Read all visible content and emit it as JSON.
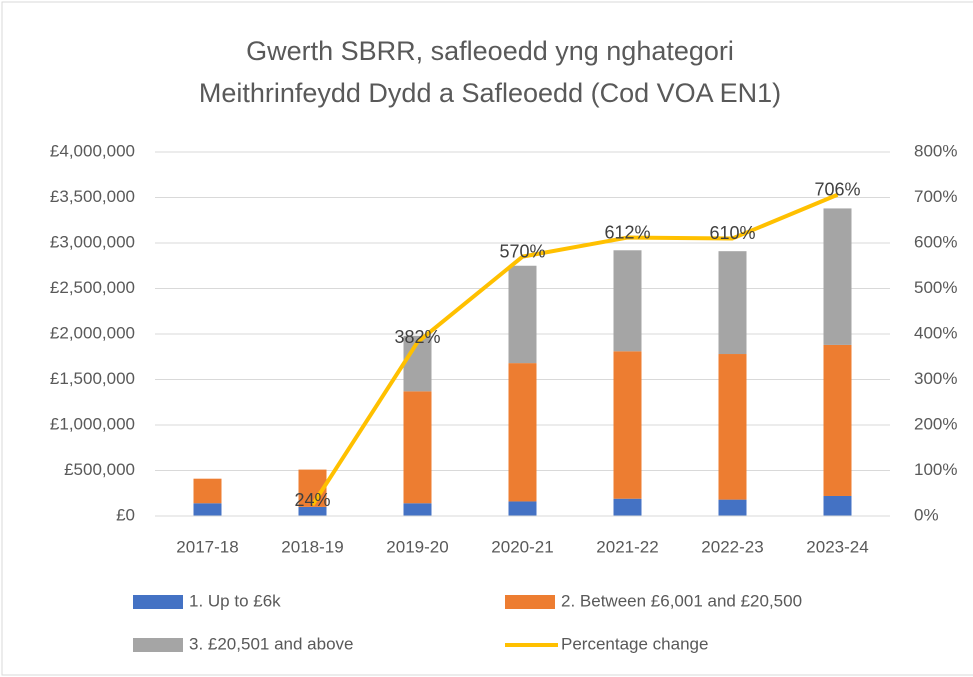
{
  "chart_data": {
    "type": "bar",
    "stacked": true,
    "title": "Gwerth SBRR, safleoedd yng nghategori Meithrinfeydd Dydd a Safleoedd (Cod VOA EN1)",
    "categories": [
      "2017-18",
      "2018-19",
      "2019-20",
      "2020-21",
      "2021-22",
      "2022-23",
      "2023-24"
    ],
    "series": [
      {
        "name": "1. Up to £6k",
        "color": "#4472c4",
        "type": "bar",
        "values": [
          140000,
          100000,
          140000,
          160000,
          190000,
          180000,
          220000
        ]
      },
      {
        "name": "2. Between £6,001 and £20,500",
        "color": "#ed7d31",
        "type": "bar",
        "values": [
          270000,
          410000,
          1230000,
          1520000,
          1620000,
          1600000,
          1660000
        ]
      },
      {
        "name": "3. £20,501 and above",
        "color": "#a5a5a5",
        "type": "bar",
        "values": [
          0,
          0,
          610000,
          1070000,
          1110000,
          1130000,
          1500000
        ]
      },
      {
        "name": "Percentage change",
        "color": "#ffc000",
        "type": "line",
        "axis": "y2",
        "values": [
          null,
          24,
          382,
          570,
          612,
          610,
          706
        ],
        "value_labels": [
          null,
          "24%",
          "382%",
          "570%",
          "612%",
          "610%",
          "706%"
        ]
      }
    ],
    "ylim": [
      0,
      4000000
    ],
    "yticks": [
      {
        "value": 0,
        "label": "£0"
      },
      {
        "value": 500000,
        "label": "£500,000"
      },
      {
        "value": 1000000,
        "label": "£1,000,000"
      },
      {
        "value": 1500000,
        "label": "£1,500,000"
      },
      {
        "value": 2000000,
        "label": "£2,000,000"
      },
      {
        "value": 2500000,
        "label": "£2,500,000"
      },
      {
        "value": 3000000,
        "label": "£3,000,000"
      },
      {
        "value": 3500000,
        "label": "£3,500,000"
      },
      {
        "value": 4000000,
        "label": "£4,000,000"
      }
    ],
    "y2lim": [
      0,
      800
    ],
    "y2ticks": [
      {
        "value": 0,
        "label": "0%"
      },
      {
        "value": 100,
        "label": "100%"
      },
      {
        "value": 200,
        "label": "200%"
      },
      {
        "value": 300,
        "label": "300%"
      },
      {
        "value": 400,
        "label": "400%"
      },
      {
        "value": 500,
        "label": "500%"
      },
      {
        "value": 600,
        "label": "600%"
      },
      {
        "value": 700,
        "label": "700%"
      },
      {
        "value": 800,
        "label": "800%"
      }
    ],
    "grid": true,
    "legend": "bottom"
  }
}
